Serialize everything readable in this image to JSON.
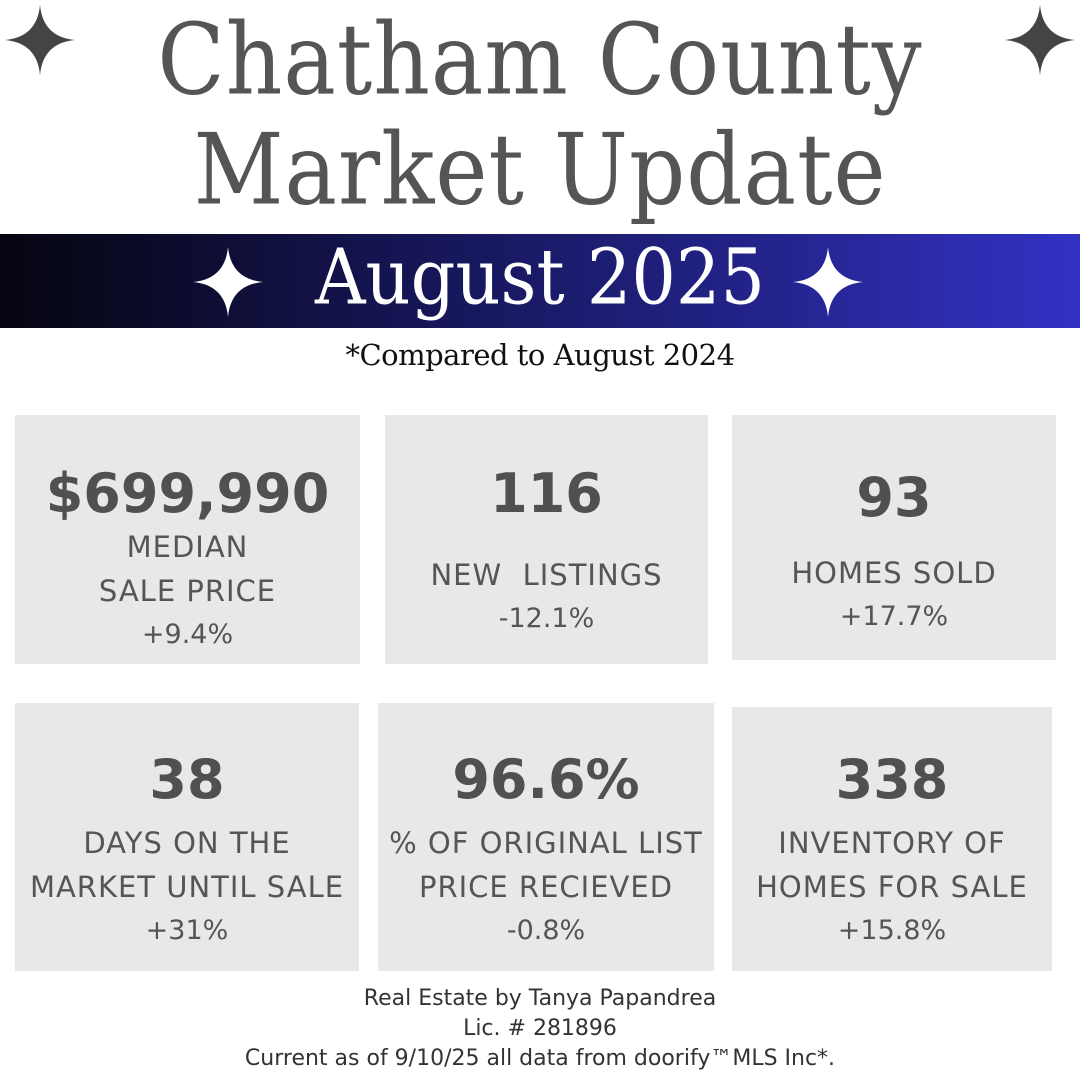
{
  "header": {
    "line1": "Chatham County",
    "line2": "Market Update"
  },
  "banner": {
    "text": "August 2025",
    "gradient": [
      "#050510",
      "#3232c4"
    ]
  },
  "subtitle": "*Compared to August 2024",
  "stats": [
    {
      "value": "$699,990",
      "label1": "MEDIAN",
      "label2": "SALE PRICE",
      "change": "+9.4%"
    },
    {
      "value": "116",
      "label1": "NEW  LISTINGS",
      "change": "-12.1%"
    },
    {
      "value": "93",
      "label1": "HOMES SOLD",
      "change": "+17.7%"
    },
    {
      "value": "38",
      "label1": "DAYS ON THE",
      "label2": "MARKET UNTIL SALE",
      "change": "+31%"
    },
    {
      "value": "96.6%",
      "label1": "% OF ORIGINAL LIST",
      "label2": "PRICE RECIEVED",
      "change": "-0.8%"
    },
    {
      "value": "338",
      "label1": "INVENTORY OF",
      "label2": "HOMES FOR SALE",
      "change": "+15.8%"
    }
  ],
  "footer": {
    "line1": "Real Estate by Tanya Papandrea",
    "line2": "Lic. # 281896",
    "line3": "Current as of 9/10/25 all data from  doorify™MLS Inc*."
  },
  "colors": {
    "card": "#e8e8e8",
    "text": "#555555"
  },
  "icons": [
    "sparkle-icon"
  ]
}
